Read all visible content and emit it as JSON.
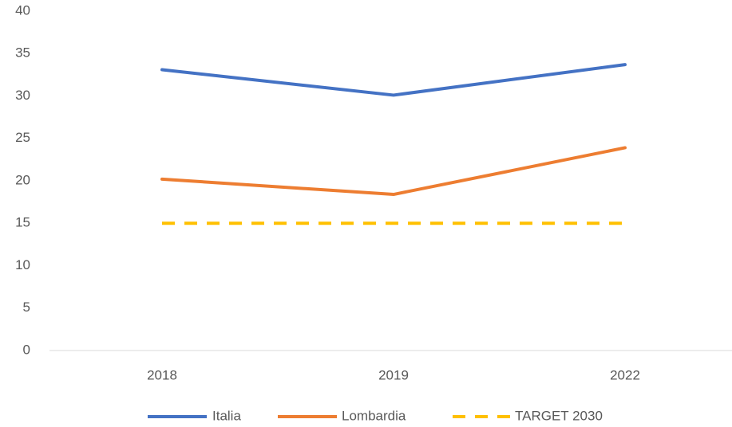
{
  "chart_data": {
    "type": "line",
    "categories": [
      "2018",
      "2019",
      "2022"
    ],
    "series": [
      {
        "name": "Italia",
        "color": "#4472c4",
        "values": [
          33.1,
          30.1,
          33.7
        ],
        "dash": false
      },
      {
        "name": "Lombardia",
        "color": "#ed7d31",
        "values": [
          20.2,
          18.4,
          23.9
        ],
        "dash": false
      },
      {
        "name": "TARGET 2030",
        "color": "#ffc000",
        "values": [
          15,
          15,
          15
        ],
        "dash": true
      }
    ],
    "ylim": [
      0,
      40
    ],
    "yticks": [
      0,
      5,
      10,
      15,
      20,
      25,
      30,
      35,
      40
    ],
    "grid": false,
    "legend": "bottom"
  }
}
